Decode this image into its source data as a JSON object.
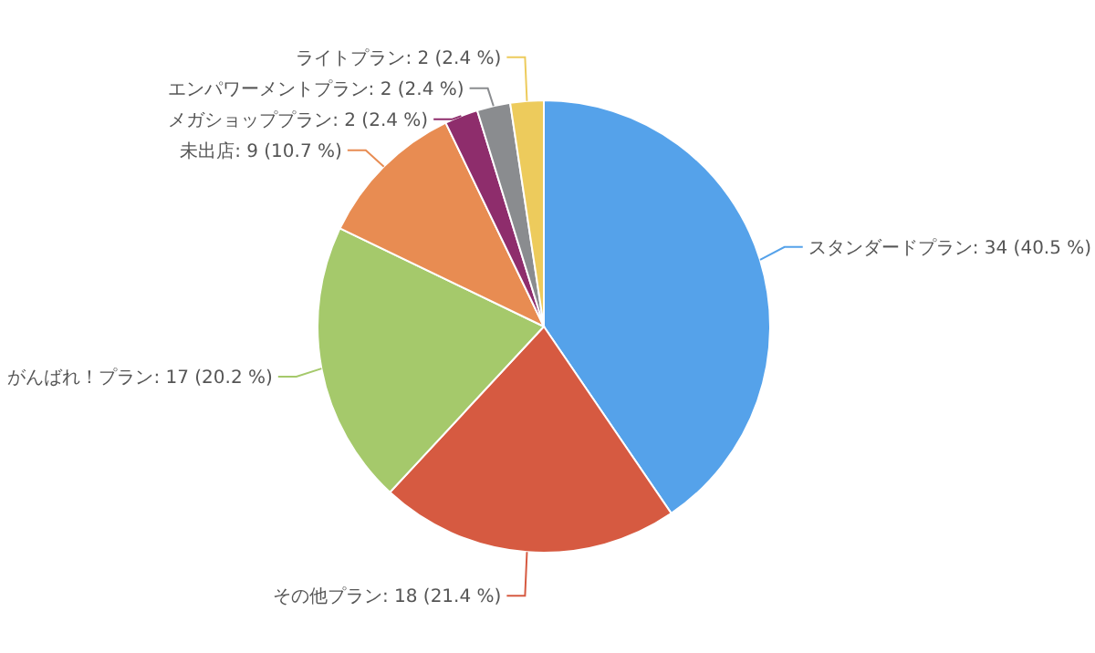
{
  "chart_data": {
    "type": "pie",
    "categories": [
      "スタンダードプラン",
      "その他プラン",
      "がんばれ！プラン",
      "未出店",
      "メガショッププラン",
      "エンパワーメントプラン",
      "ライトプラン"
    ],
    "values": [
      34,
      18,
      17,
      9,
      2,
      2,
      2
    ],
    "value_labels": [
      "34 (40.5 %)",
      "18 (21.4 %)",
      "17 (20.2 %)",
      "9 (10.7 %)",
      "2 (2.4 %)",
      "2 (2.4 %)",
      "2 (2.4 %)"
    ],
    "colors": [
      "#55a2ea",
      "#d65a41",
      "#a5c96b",
      "#e88c52",
      "#8e2d6c",
      "#8a8c8f",
      "#edcb5c"
    ]
  }
}
